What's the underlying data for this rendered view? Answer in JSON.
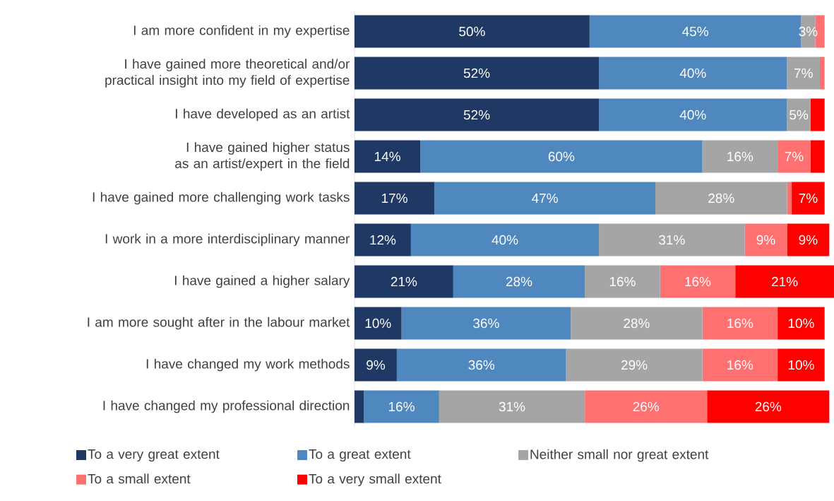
{
  "chart_data": {
    "type": "bar",
    "orientation": "horizontal",
    "stacked": true,
    "legend": "bottom",
    "categories": [
      "I am more confident in my expertise",
      "I have gained more theoretical and/or practical insight into my field of expertise",
      "I have developed as an artist",
      "I have gained higher status as an artist/expert in the field",
      "I have gained more challenging work tasks",
      "I work in a more interdisciplinary manner",
      "I have gained a higher salary",
      "I am more sought after in the labour market",
      "I have changed my work methods",
      "I have changed my professional direction"
    ],
    "series": [
      {
        "name": "To a very great extent",
        "color": "#1f3864",
        "values": [
          50,
          52,
          52,
          14,
          17,
          12,
          21,
          10,
          9,
          2
        ],
        "value_labels": [
          "50%",
          "52%",
          "52%",
          "14%",
          "17%",
          "12%",
          "21%",
          "10%",
          "9%",
          null
        ]
      },
      {
        "name": "To a great extent",
        "color": "#4f87bf",
        "values": [
          45,
          40,
          40,
          60,
          47,
          40,
          28,
          36,
          36,
          16
        ],
        "value_labels": [
          "45%",
          "40%",
          "40%",
          "60%",
          "47%",
          "40%",
          "28%",
          "36%",
          "36%",
          "16%"
        ]
      },
      {
        "name": "Neither small nor great extent",
        "color": "#a5a5a5",
        "values": [
          3,
          7,
          5,
          16,
          28,
          31,
          16,
          28,
          29,
          31
        ],
        "value_labels": [
          "3%",
          "7%",
          "5%",
          "16%",
          "28%",
          "31%",
          "16%",
          "28%",
          "29%",
          "31%"
        ]
      },
      {
        "name": "To a small extent",
        "color": "#ff7070",
        "values": [
          2,
          1,
          0,
          7,
          1,
          9,
          16,
          16,
          16,
          26
        ],
        "value_labels": [
          null,
          null,
          null,
          "7%",
          null,
          "9%",
          "16%",
          "16%",
          "16%",
          "26%"
        ]
      },
      {
        "name": "To a very small extent",
        "color": "#ff0000",
        "values": [
          0,
          0,
          3,
          3,
          7,
          9,
          21,
          10,
          10,
          26
        ],
        "value_labels": [
          null,
          null,
          null,
          null,
          "7%",
          "9%",
          "21%",
          "10%",
          "10%",
          "26%"
        ]
      }
    ]
  }
}
